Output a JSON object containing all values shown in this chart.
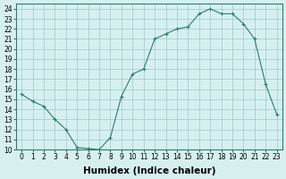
{
  "x": [
    0,
    1,
    2,
    3,
    4,
    5,
    6,
    7,
    8,
    9,
    10,
    11,
    12,
    13,
    14,
    15,
    16,
    17,
    18,
    19,
    20,
    21,
    22,
    23
  ],
  "y": [
    15.5,
    14.8,
    14.3,
    13.0,
    12.0,
    10.2,
    10.1,
    10.0,
    11.2,
    15.3,
    17.5,
    18.0,
    21.0,
    21.5,
    22.0,
    22.2,
    23.5,
    24.0,
    23.5,
    23.5,
    22.5,
    21.0,
    16.5,
    13.5
  ],
  "xlabel": "Humidex (Indice chaleur)",
  "xlim": [
    -0.5,
    23.5
  ],
  "ylim": [
    10,
    24.5
  ],
  "yticks": [
    10,
    11,
    12,
    13,
    14,
    15,
    16,
    17,
    18,
    19,
    20,
    21,
    22,
    23,
    24
  ],
  "xticks": [
    0,
    1,
    2,
    3,
    4,
    5,
    6,
    7,
    8,
    9,
    10,
    11,
    12,
    13,
    14,
    15,
    16,
    17,
    18,
    19,
    20,
    21,
    22,
    23
  ],
  "xtick_labels": [
    "0",
    "1",
    "2",
    "3",
    "4",
    "5",
    "6",
    "7",
    "8",
    "9",
    "10",
    "11",
    "12",
    "13",
    "14",
    "15",
    "16",
    "17",
    "18",
    "19",
    "20",
    "21",
    "22",
    "23"
  ],
  "line_color": "#2d7d6e",
  "marker": "+",
  "bg_color": "#d6f0f0",
  "grid_color": "#a0c8c8",
  "tick_fontsize": 5.5,
  "xlabel_fontsize": 7.5,
  "lw": 0.8,
  "markersize": 3.5,
  "markeredgewidth": 0.8
}
